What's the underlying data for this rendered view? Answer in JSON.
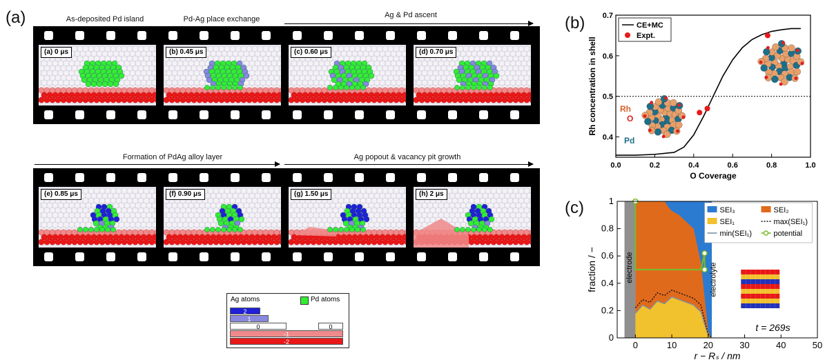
{
  "panel_a": {
    "label": "(a)",
    "stages": [
      "As-deposited Pd island",
      "Pd-Ag place exchange",
      "Ag & Pd ascent",
      "Formation of PdAg alloy layer",
      "Ag popout & vacancy pit growth"
    ],
    "frames": [
      {
        "tag": "(a)",
        "time": "0 μs"
      },
      {
        "tag": "(b)",
        "time": "0.45 μs"
      },
      {
        "tag": "(c)",
        "time": "0.60 μs"
      },
      {
        "tag": "(d)",
        "time": "0.70 μs"
      },
      {
        "tag": "(e)",
        "time": "0.85 μs"
      },
      {
        "tag": "(f)",
        "time": "0.90 μs"
      },
      {
        "tag": "(g)",
        "time": "1.50 μs"
      },
      {
        "tag": "(h)",
        "time": "2 μs"
      }
    ],
    "legend": {
      "ag_title": "Ag atoms",
      "pd_title": "Pd atoms",
      "levels": [
        "2",
        "1",
        "0",
        "0",
        "-1",
        "-2"
      ]
    },
    "colors": {
      "pd": "#33ee33",
      "ag_up2": "#2020d8",
      "ag_up1": "#8888e0",
      "ag_0": "#f4f4f4",
      "ag_down1": "#f08a8a",
      "ag_down2": "#e81818"
    }
  },
  "panel_b": {
    "label": "(b)",
    "legend_line": "CE+MC",
    "legend_points": "Expt.",
    "insets": {
      "rh": "Rh",
      "o": "O",
      "pd": "Pd"
    }
  },
  "panel_c": {
    "label": "(c)",
    "legend": [
      "SEI₃",
      "SEI₂",
      "SEI₁",
      "max(SEI₁)",
      "min(SEI₁)",
      "potential"
    ],
    "region_labels": {
      "electrode": "electrode",
      "electrolyte": "electrolyte"
    },
    "time_label": "t = 269s"
  },
  "chart_data": [
    {
      "type": "line",
      "xlabel": "O Coverage",
      "ylabel": "Rh concentration in shell",
      "xlim": [
        0.0,
        1.0
      ],
      "ylim": [
        0.35,
        0.7
      ],
      "xticks": [
        "0.0",
        "0.2",
        "0.4",
        "0.6",
        "0.8",
        "1.0"
      ],
      "yticks": [
        "0.4",
        "0.5",
        "0.6",
        "0.7"
      ],
      "series": [
        {
          "name": "CE+MC",
          "x": [
            0.0,
            0.1,
            0.2,
            0.3,
            0.35,
            0.4,
            0.45,
            0.5,
            0.55,
            0.6,
            0.65,
            0.7,
            0.75,
            0.8,
            0.85,
            0.9,
            0.95
          ],
          "y": [
            0.355,
            0.355,
            0.357,
            0.362,
            0.375,
            0.405,
            0.45,
            0.5,
            0.55,
            0.59,
            0.62,
            0.64,
            0.652,
            0.66,
            0.664,
            0.667,
            0.667
          ]
        },
        {
          "name": "Expt.",
          "x": [
            0.43,
            0.47,
            0.78
          ],
          "y": [
            0.46,
            0.47,
            0.65
          ]
        }
      ],
      "reference_line": 0.5
    },
    {
      "type": "area",
      "xlabel": "r − Rₛ / nm",
      "ylabel": "fraction / −",
      "xlim": [
        -5,
        50
      ],
      "ylim": [
        0,
        1
      ],
      "xticks": [
        "0",
        "10",
        "20",
        "30",
        "40",
        "50"
      ],
      "yticks": [
        "0",
        "0.2",
        "0.4",
        "0.6",
        "0.8",
        "1"
      ],
      "series": [
        {
          "name": "SEI₁",
          "x": [
            0,
            2,
            4,
            6,
            8,
            10,
            12,
            14,
            16,
            18,
            19,
            20,
            21
          ],
          "y": [
            0.18,
            0.24,
            0.21,
            0.27,
            0.25,
            0.3,
            0.28,
            0.26,
            0.24,
            0.19,
            0.1,
            0.02,
            0
          ]
        },
        {
          "name": "max(SEI₁)",
          "x": [
            0,
            2,
            4,
            6,
            8,
            10,
            12,
            14,
            16,
            18,
            19,
            20,
            21
          ],
          "y": [
            0.22,
            0.28,
            0.26,
            0.33,
            0.31,
            0.35,
            0.33,
            0.31,
            0.29,
            0.24,
            0.13,
            0.03,
            0
          ]
        },
        {
          "name": "SEI₂",
          "x": [
            0,
            8,
            9,
            10,
            12,
            14,
            16,
            18,
            19,
            20,
            21
          ],
          "y": [
            1.0,
            1.0,
            0.96,
            0.93,
            0.9,
            0.85,
            0.8,
            0.55,
            0.3,
            0.05,
            0
          ]
        },
        {
          "name": "potential",
          "x": [
            0,
            0,
            18,
            19,
            19
          ],
          "y": [
            1.0,
            0.5,
            0.5,
            0.62,
            0.5
          ]
        }
      ]
    }
  ]
}
